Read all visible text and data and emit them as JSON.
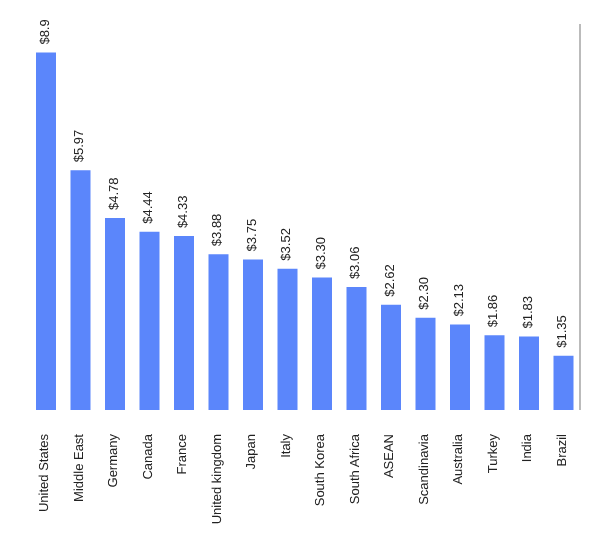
{
  "chart_data": {
    "type": "bar",
    "categories": [
      "United States",
      "Middle East",
      "Germany",
      "Canada",
      "France",
      "United kingdom",
      "Japan",
      "Italy",
      "South Korea",
      "South Africa",
      "ASEAN",
      "Scandinavia",
      "Australia",
      "Turkey",
      "India",
      "Brazil"
    ],
    "values": [
      8.9,
      5.97,
      4.78,
      4.44,
      4.33,
      3.88,
      3.75,
      3.52,
      3.3,
      3.06,
      2.62,
      2.3,
      2.13,
      1.86,
      1.83,
      1.35
    ],
    "value_labels": [
      "$8.9",
      "$5.97",
      "$4.78",
      "$4.44",
      "$4.33",
      "$3.88",
      "$3.75",
      "$3.52",
      "$3.30",
      "$3.06",
      "$2.62",
      "$2.30",
      "$2.13",
      "$1.86",
      "$1.83",
      "$1.35"
    ],
    "color": "#5b86fb",
    "tick_labels": "x"
  }
}
